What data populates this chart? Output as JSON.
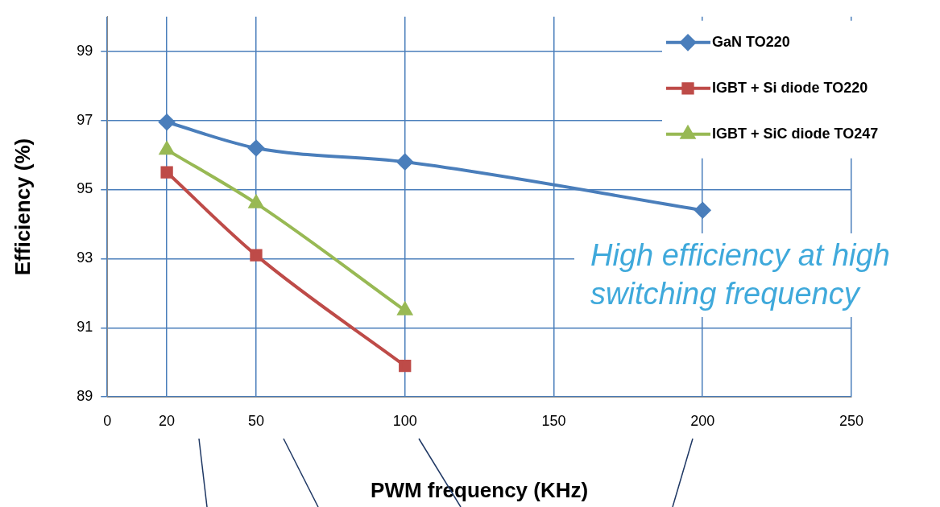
{
  "chart_data": {
    "type": "line",
    "xlabel": "PWM frequency (KHz)",
    "ylabel": "Efficiency (%)",
    "xlim": [
      0,
      250
    ],
    "xticks": [
      0,
      20,
      50,
      100,
      150,
      200,
      250
    ],
    "ylim": [
      89,
      100
    ],
    "yticks": [
      89,
      91,
      93,
      95,
      97,
      99
    ],
    "grid": true,
    "legend": "top right",
    "series": [
      {
        "name": "GaN TO220",
        "color": "#4a7ebb",
        "marker": "diamond",
        "x": [
          20,
          50,
          100,
          200
        ],
        "values": [
          96.95,
          96.2,
          95.8,
          94.4
        ]
      },
      {
        "name": "IGBT + Si diode TO220",
        "color": "#be4b48",
        "marker": "square",
        "x": [
          20,
          50,
          100
        ],
        "values": [
          95.5,
          93.1,
          89.9
        ]
      },
      {
        "name": "IGBT + SiC diode TO247",
        "color": "#98b954",
        "marker": "triangle",
        "x": [
          20,
          50,
          100
        ],
        "values": [
          96.15,
          94.6,
          91.5
        ]
      }
    ],
    "annotations": [
      "High efficiency at high switching frequency"
    ]
  }
}
